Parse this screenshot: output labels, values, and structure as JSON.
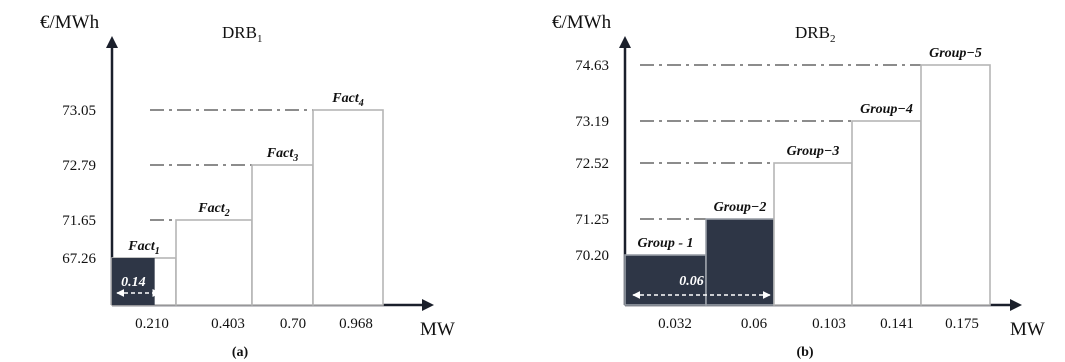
{
  "chart_data": [
    {
      "type": "bar",
      "title_main": "DRB",
      "title_sub": "1",
      "ylabel": "€/MWh",
      "xlabel": "MW",
      "caption": "(a)",
      "x_ticks": [
        "0.210",
        "0.403",
        "0.70",
        "0.968"
      ],
      "y_ticks": [
        "67.26",
        "71.65",
        "72.79",
        "73.05"
      ],
      "blocks": [
        {
          "main": "Fact",
          "sub": "1",
          "x_start": 0,
          "x_end": 0.21,
          "y": 67.26
        },
        {
          "main": "Fact",
          "sub": "2",
          "x_start": 0.21,
          "x_end": 0.403,
          "y": 71.65
        },
        {
          "main": "Fact",
          "sub": "3",
          "x_start": 0.403,
          "x_end": 0.7,
          "y": 72.79
        },
        {
          "main": "Fact",
          "sub": "4",
          "x_start": 0.7,
          "x_end": 0.968,
          "y": 73.05
        }
      ],
      "highlight": {
        "value": 0.14,
        "label": "0.14",
        "price": 67.26,
        "color": "#2e3646"
      }
    },
    {
      "type": "bar",
      "title_main": "DRB",
      "title_sub": "2",
      "ylabel": "€/MWh",
      "xlabel": "MW",
      "caption": "(b)",
      "x_ticks": [
        "0.032",
        "0.06",
        "0.103",
        "0.141",
        "0.175"
      ],
      "y_ticks": [
        "70.20",
        "71.25",
        "72.52",
        "73.19",
        "74.63"
      ],
      "blocks": [
        {
          "label": "Group - 1",
          "x_start": 0,
          "x_end": 0.032,
          "y": 70.2,
          "filled": true
        },
        {
          "label": "Group−2",
          "x_start": 0.032,
          "x_end": 0.06,
          "y": 71.25,
          "filled": true
        },
        {
          "label": "Group−3",
          "x_start": 0.06,
          "x_end": 0.103,
          "y": 72.52
        },
        {
          "label": "Group−4",
          "x_start": 0.103,
          "x_end": 0.141,
          "y": 73.19
        },
        {
          "label": "Group−5",
          "x_start": 0.141,
          "x_end": 0.175,
          "y": 74.63
        }
      ],
      "highlight": {
        "value": 0.06,
        "label": "0.06",
        "color": "#2e3646"
      }
    }
  ]
}
